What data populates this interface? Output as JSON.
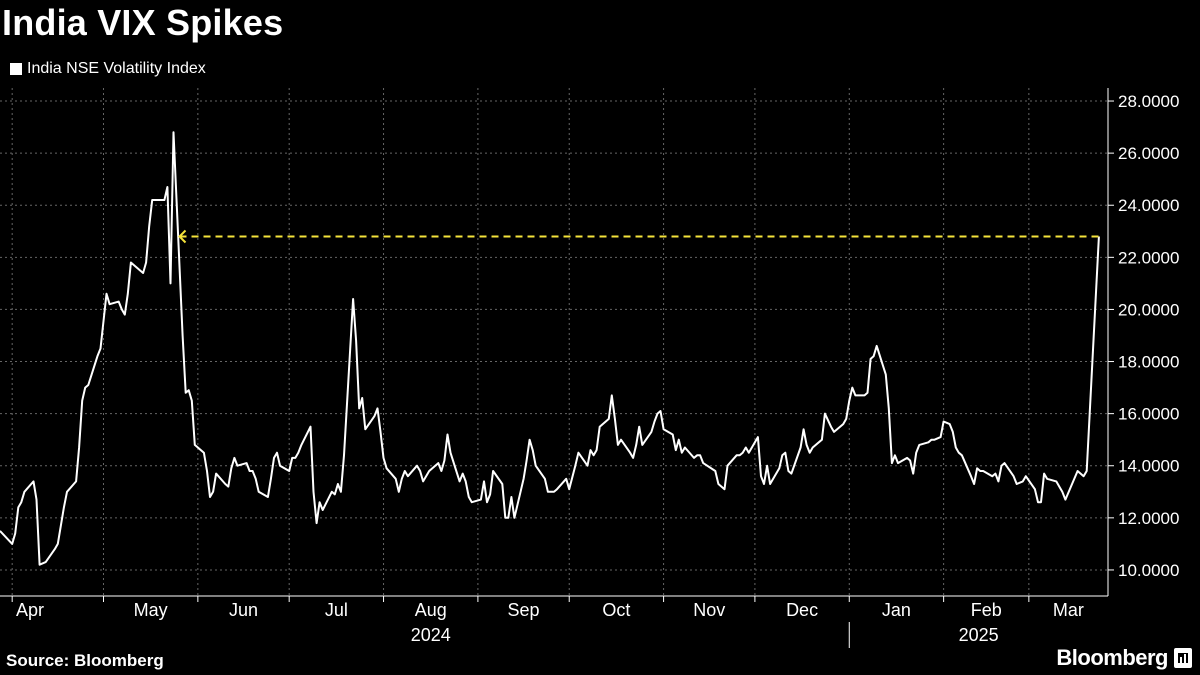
{
  "header": {
    "title": "India VIX Spikes"
  },
  "footer": {
    "source": "Source: Bloomberg",
    "brand": "Bloomberg"
  },
  "colors": {
    "background": "#000000",
    "line": "#ffffff",
    "annotation": "#f5e33b",
    "grid": "#666666"
  },
  "chart_data": {
    "type": "line",
    "title": "India VIX Spikes",
    "series": [
      {
        "name": "India NSE Volatility Index",
        "points": [
          [
            "2024-03-28",
            11.5
          ],
          [
            "2024-04-01",
            11.0
          ],
          [
            "2024-04-02",
            11.4
          ],
          [
            "2024-04-03",
            12.4
          ],
          [
            "2024-04-04",
            12.6
          ],
          [
            "2024-04-05",
            13.0
          ],
          [
            "2024-04-08",
            13.4
          ],
          [
            "2024-04-09",
            12.7
          ],
          [
            "2024-04-10",
            10.2
          ],
          [
            "2024-04-12",
            10.3
          ],
          [
            "2024-04-15",
            10.8
          ],
          [
            "2024-04-16",
            11.0
          ],
          [
            "2024-04-18",
            12.4
          ],
          [
            "2024-04-19",
            13.0
          ],
          [
            "2024-04-22",
            13.4
          ],
          [
            "2024-04-23",
            14.7
          ],
          [
            "2024-04-24",
            16.5
          ],
          [
            "2024-04-25",
            17.0
          ],
          [
            "2024-04-26",
            17.1
          ],
          [
            "2024-04-29",
            18.2
          ],
          [
            "2024-04-30",
            18.5
          ],
          [
            "2024-05-02",
            20.6
          ],
          [
            "2024-05-03",
            20.2
          ],
          [
            "2024-05-06",
            20.3
          ],
          [
            "2024-05-07",
            20.0
          ],
          [
            "2024-05-08",
            19.8
          ],
          [
            "2024-05-09",
            20.6
          ],
          [
            "2024-05-10",
            21.8
          ],
          [
            "2024-05-13",
            21.5
          ],
          [
            "2024-05-14",
            21.4
          ],
          [
            "2024-05-15",
            21.8
          ],
          [
            "2024-05-16",
            23.2
          ],
          [
            "2024-05-17",
            24.2
          ],
          [
            "2024-05-20",
            24.2
          ],
          [
            "2024-05-21",
            24.2
          ],
          [
            "2024-05-22",
            24.7
          ],
          [
            "2024-05-23",
            21.0
          ],
          [
            "2024-05-24",
            26.8
          ],
          [
            "2024-05-27",
            19.0
          ],
          [
            "2024-05-28",
            16.8
          ],
          [
            "2024-05-29",
            16.9
          ],
          [
            "2024-05-30",
            16.5
          ],
          [
            "2024-05-31",
            14.8
          ],
          [
            "2024-06-03",
            14.5
          ],
          [
            "2024-06-04",
            13.8
          ],
          [
            "2024-06-05",
            12.8
          ],
          [
            "2024-06-06",
            13.0
          ],
          [
            "2024-06-07",
            13.7
          ],
          [
            "2024-06-10",
            13.3
          ],
          [
            "2024-06-11",
            13.2
          ],
          [
            "2024-06-12",
            13.9
          ],
          [
            "2024-06-13",
            14.3
          ],
          [
            "2024-06-14",
            14.0
          ],
          [
            "2024-06-17",
            14.1
          ],
          [
            "2024-06-18",
            13.8
          ],
          [
            "2024-06-19",
            13.8
          ],
          [
            "2024-06-20",
            13.5
          ],
          [
            "2024-06-21",
            13.0
          ],
          [
            "2024-06-24",
            12.8
          ],
          [
            "2024-06-25",
            13.5
          ],
          [
            "2024-06-26",
            14.3
          ],
          [
            "2024-06-27",
            14.5
          ],
          [
            "2024-06-28",
            14.0
          ],
          [
            "2024-07-01",
            13.8
          ],
          [
            "2024-07-02",
            14.3
          ],
          [
            "2024-07-03",
            14.3
          ],
          [
            "2024-07-04",
            14.5
          ],
          [
            "2024-07-05",
            14.8
          ],
          [
            "2024-07-08",
            15.5
          ],
          [
            "2024-07-09",
            13.0
          ],
          [
            "2024-07-10",
            11.8
          ],
          [
            "2024-07-11",
            12.6
          ],
          [
            "2024-07-12",
            12.3
          ],
          [
            "2024-07-15",
            13.0
          ],
          [
            "2024-07-16",
            12.9
          ],
          [
            "2024-07-17",
            13.3
          ],
          [
            "2024-07-18",
            13.0
          ],
          [
            "2024-07-19",
            14.4
          ],
          [
            "2024-07-22",
            20.4
          ],
          [
            "2024-07-23",
            18.8
          ],
          [
            "2024-07-24",
            16.2
          ],
          [
            "2024-07-25",
            16.6
          ],
          [
            "2024-07-26",
            15.4
          ],
          [
            "2024-07-29",
            15.9
          ],
          [
            "2024-07-30",
            16.2
          ],
          [
            "2024-07-31",
            15.3
          ],
          [
            "2024-08-01",
            14.3
          ],
          [
            "2024-08-02",
            13.9
          ],
          [
            "2024-08-05",
            13.5
          ],
          [
            "2024-08-06",
            13.0
          ],
          [
            "2024-08-07",
            13.5
          ],
          [
            "2024-08-08",
            13.8
          ],
          [
            "2024-08-09",
            13.6
          ],
          [
            "2024-08-12",
            14.0
          ],
          [
            "2024-08-13",
            13.8
          ],
          [
            "2024-08-14",
            13.4
          ],
          [
            "2024-08-16",
            13.8
          ],
          [
            "2024-08-19",
            14.1
          ],
          [
            "2024-08-20",
            13.8
          ],
          [
            "2024-08-21",
            14.2
          ],
          [
            "2024-08-22",
            15.2
          ],
          [
            "2024-08-23",
            14.5
          ],
          [
            "2024-08-26",
            13.4
          ],
          [
            "2024-08-27",
            13.7
          ],
          [
            "2024-08-28",
            13.4
          ],
          [
            "2024-08-29",
            12.8
          ],
          [
            "2024-08-30",
            12.6
          ],
          [
            "2024-09-02",
            12.7
          ],
          [
            "2024-09-03",
            13.4
          ],
          [
            "2024-09-04",
            12.6
          ],
          [
            "2024-09-05",
            12.9
          ],
          [
            "2024-09-06",
            13.8
          ],
          [
            "2024-09-09",
            13.3
          ],
          [
            "2024-09-10",
            12.0
          ],
          [
            "2024-09-11",
            12.0
          ],
          [
            "2024-09-12",
            12.8
          ],
          [
            "2024-09-13",
            12.0
          ],
          [
            "2024-09-16",
            13.5
          ],
          [
            "2024-09-17",
            14.2
          ],
          [
            "2024-09-18",
            15.0
          ],
          [
            "2024-09-19",
            14.6
          ],
          [
            "2024-09-20",
            14.0
          ],
          [
            "2024-09-23",
            13.5
          ],
          [
            "2024-09-24",
            13.0
          ],
          [
            "2024-09-25",
            13.0
          ],
          [
            "2024-09-26",
            13.0
          ],
          [
            "2024-09-27",
            13.1
          ],
          [
            "2024-09-30",
            13.5
          ],
          [
            "2024-10-01",
            13.1
          ],
          [
            "2024-10-03",
            14.0
          ],
          [
            "2024-10-04",
            14.5
          ],
          [
            "2024-10-07",
            14.0
          ],
          [
            "2024-10-08",
            14.6
          ],
          [
            "2024-10-09",
            14.4
          ],
          [
            "2024-10-10",
            14.6
          ],
          [
            "2024-10-11",
            15.5
          ],
          [
            "2024-10-14",
            15.8
          ],
          [
            "2024-10-15",
            16.7
          ],
          [
            "2024-10-16",
            15.8
          ],
          [
            "2024-10-17",
            14.8
          ],
          [
            "2024-10-18",
            15.0
          ],
          [
            "2024-10-21",
            14.5
          ],
          [
            "2024-10-22",
            14.3
          ],
          [
            "2024-10-23",
            14.8
          ],
          [
            "2024-10-24",
            15.5
          ],
          [
            "2024-10-25",
            14.8
          ],
          [
            "2024-10-28",
            15.3
          ],
          [
            "2024-10-29",
            15.7
          ],
          [
            "2024-10-30",
            16.0
          ],
          [
            "2024-10-31",
            16.1
          ],
          [
            "2024-11-01",
            15.4
          ],
          [
            "2024-11-04",
            15.2
          ],
          [
            "2024-11-05",
            14.6
          ],
          [
            "2024-11-06",
            15.0
          ],
          [
            "2024-11-07",
            14.5
          ],
          [
            "2024-11-08",
            14.7
          ],
          [
            "2024-11-11",
            14.3
          ],
          [
            "2024-11-12",
            14.4
          ],
          [
            "2024-11-13",
            14.4
          ],
          [
            "2024-11-14",
            14.1
          ],
          [
            "2024-11-18",
            13.8
          ],
          [
            "2024-11-19",
            13.3
          ],
          [
            "2024-11-21",
            13.1
          ],
          [
            "2024-11-22",
            14.0
          ],
          [
            "2024-11-25",
            14.4
          ],
          [
            "2024-11-26",
            14.4
          ],
          [
            "2024-11-27",
            14.5
          ],
          [
            "2024-11-28",
            14.7
          ],
          [
            "2024-11-29",
            14.5
          ],
          [
            "2024-12-02",
            15.1
          ],
          [
            "2024-12-03",
            13.6
          ],
          [
            "2024-12-04",
            13.3
          ],
          [
            "2024-12-05",
            14.0
          ],
          [
            "2024-12-06",
            13.3
          ],
          [
            "2024-12-09",
            13.9
          ],
          [
            "2024-12-10",
            14.4
          ],
          [
            "2024-12-11",
            14.5
          ],
          [
            "2024-12-12",
            13.8
          ],
          [
            "2024-12-13",
            13.7
          ],
          [
            "2024-12-16",
            14.7
          ],
          [
            "2024-12-17",
            15.4
          ],
          [
            "2024-12-18",
            14.8
          ],
          [
            "2024-12-19",
            14.5
          ],
          [
            "2024-12-20",
            14.7
          ],
          [
            "2024-12-23",
            15.0
          ],
          [
            "2024-12-24",
            16.0
          ],
          [
            "2024-12-26",
            15.5
          ],
          [
            "2024-12-27",
            15.3
          ],
          [
            "2024-12-30",
            15.6
          ],
          [
            "2024-12-31",
            15.8
          ],
          [
            "2025-01-01",
            16.5
          ],
          [
            "2025-01-02",
            17.0
          ],
          [
            "2025-01-03",
            16.7
          ],
          [
            "2025-01-06",
            16.7
          ],
          [
            "2025-01-07",
            16.8
          ],
          [
            "2025-01-08",
            18.1
          ],
          [
            "2025-01-09",
            18.2
          ],
          [
            "2025-01-10",
            18.6
          ],
          [
            "2025-01-13",
            17.5
          ],
          [
            "2025-01-14",
            16.2
          ],
          [
            "2025-01-15",
            14.1
          ],
          [
            "2025-01-16",
            14.4
          ],
          [
            "2025-01-17",
            14.1
          ],
          [
            "2025-01-20",
            14.3
          ],
          [
            "2025-01-21",
            14.2
          ],
          [
            "2025-01-22",
            13.7
          ],
          [
            "2025-01-23",
            14.5
          ],
          [
            "2025-01-24",
            14.8
          ],
          [
            "2025-01-27",
            14.9
          ],
          [
            "2025-01-28",
            15.0
          ],
          [
            "2025-01-29",
            15.0
          ],
          [
            "2025-01-31",
            15.1
          ],
          [
            "2025-02-01",
            15.7
          ],
          [
            "2025-02-03",
            15.6
          ],
          [
            "2025-02-04",
            15.3
          ],
          [
            "2025-02-05",
            14.7
          ],
          [
            "2025-02-06",
            14.5
          ],
          [
            "2025-02-07",
            14.4
          ],
          [
            "2025-02-10",
            13.6
          ],
          [
            "2025-02-11",
            13.3
          ],
          [
            "2025-02-12",
            13.9
          ],
          [
            "2025-02-13",
            13.8
          ],
          [
            "2025-02-14",
            13.8
          ],
          [
            "2025-02-17",
            13.6
          ],
          [
            "2025-02-18",
            13.7
          ],
          [
            "2025-02-19",
            13.4
          ],
          [
            "2025-02-20",
            14.0
          ],
          [
            "2025-02-21",
            14.1
          ],
          [
            "2025-02-24",
            13.6
          ],
          [
            "2025-02-25",
            13.3
          ],
          [
            "2025-02-27",
            13.4
          ],
          [
            "2025-02-28",
            13.6
          ],
          [
            "2025-03-03",
            13.1
          ],
          [
            "2025-03-04",
            12.6
          ],
          [
            "2025-03-05",
            12.6
          ],
          [
            "2025-03-06",
            13.7
          ],
          [
            "2025-03-07",
            13.5
          ],
          [
            "2025-03-10",
            13.4
          ],
          [
            "2025-03-11",
            13.2
          ],
          [
            "2025-03-12",
            13.0
          ],
          [
            "2025-03-13",
            12.7
          ],
          [
            "2025-03-17",
            13.8
          ],
          [
            "2025-03-18",
            13.7
          ],
          [
            "2025-03-19",
            13.6
          ],
          [
            "2025-03-20",
            13.8
          ],
          [
            "2025-03-24",
            22.8
          ]
        ]
      }
    ],
    "annotation": {
      "type": "dashed-horizontal",
      "y": 22.8,
      "from_date": "2024-05-24",
      "to_date": "2025-03-24",
      "arrow": "left"
    },
    "ylim": [
      9.0,
      28.5
    ],
    "yticks": [
      "10.0000",
      "12.0000",
      "14.0000",
      "16.0000",
      "18.0000",
      "20.0000",
      "22.0000",
      "24.0000",
      "26.0000",
      "28.0000"
    ],
    "ytick_values": [
      10,
      12,
      14,
      16,
      18,
      20,
      22,
      24,
      26,
      28
    ],
    "y_axis_position": "right",
    "xlim": [
      "2024-03-28",
      "2025-03-27"
    ],
    "x_months": [
      {
        "label": "Apr",
        "start": "2024-04-01"
      },
      {
        "label": "May",
        "start": "2024-05-01"
      },
      {
        "label": "Jun",
        "start": "2024-06-01"
      },
      {
        "label": "Jul",
        "start": "2024-07-01"
      },
      {
        "label": "Aug",
        "start": "2024-08-01"
      },
      {
        "label": "Sep",
        "start": "2024-09-01"
      },
      {
        "label": "Oct",
        "start": "2024-10-01"
      },
      {
        "label": "Nov",
        "start": "2024-11-01"
      },
      {
        "label": "Dec",
        "start": "2024-12-01"
      },
      {
        "label": "Jan",
        "start": "2025-01-01"
      },
      {
        "label": "Feb",
        "start": "2025-02-01"
      },
      {
        "label": "Mar",
        "start": "2025-03-01"
      }
    ],
    "x_years": [
      {
        "label": "2024",
        "start": "2024-04-01",
        "end": "2025-01-01"
      },
      {
        "label": "2025",
        "start": "2025-01-01",
        "end": "2025-04-01"
      }
    ],
    "grid": true,
    "legend": "top-left"
  }
}
